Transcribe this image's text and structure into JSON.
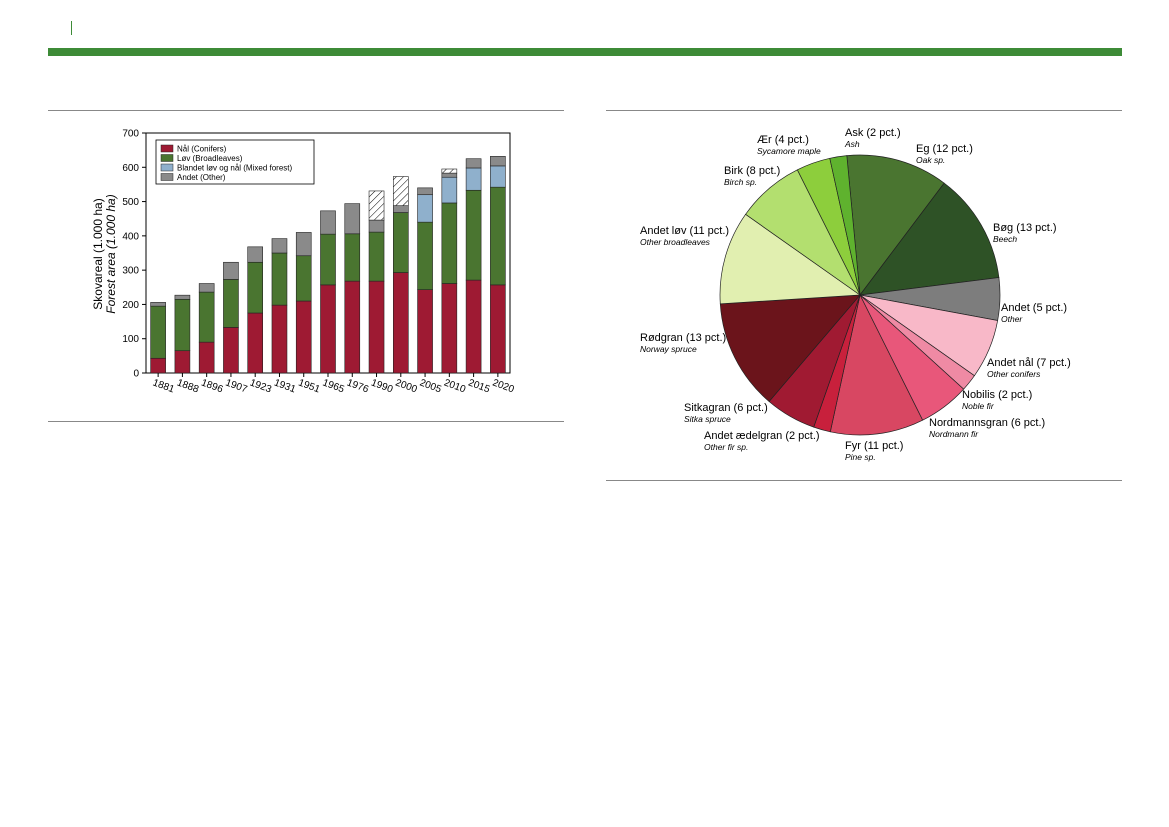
{
  "colors": {
    "accent": "#3d8b37",
    "conifers": "#9e1a33",
    "broadleaves": "#4a7530",
    "mixed": "#8fb0cc",
    "other": "#8a8a8a"
  },
  "chart_data": [
    {
      "type": "bar",
      "stacked": true,
      "ylabel": "Skovareal (1.000 ha)",
      "ylabel_en": "Forest area (1.000 ha)",
      "ylim": [
        0,
        700
      ],
      "yticks": [
        0,
        100,
        200,
        300,
        400,
        500,
        600,
        700
      ],
      "categories": [
        "1881",
        "1888",
        "1896",
        "1907",
        "1923",
        "1931",
        "1951",
        "1965",
        "1976",
        "1990",
        "2000",
        "2005",
        "2010",
        "2015",
        "2020"
      ],
      "legend_position": "top-left",
      "series": [
        {
          "name": "Nål (Conifers)",
          "color": "#9e1a33",
          "values": [
            43,
            65,
            90,
            133,
            175,
            198,
            210,
            257,
            268,
            268,
            293,
            243,
            261,
            271,
            257
          ]
        },
        {
          "name": "Løv (Broadleaves)",
          "color": "#4a7530",
          "values": [
            152,
            150,
            146,
            140,
            148,
            152,
            132,
            148,
            138,
            143,
            175,
            197,
            235,
            262,
            285
          ]
        },
        {
          "name": "Blandet løv og nål (Mixed forest)",
          "color": "#8fb0cc",
          "values": [
            0,
            0,
            0,
            0,
            0,
            0,
            0,
            0,
            0,
            0,
            0,
            80,
            75,
            65,
            62
          ]
        },
        {
          "name": "Andet (Other)",
          "color": "#8a8a8a",
          "values": [
            11,
            12,
            25,
            50,
            45,
            42,
            68,
            68,
            88,
            35,
            20,
            20,
            12,
            27,
            28
          ]
        }
      ],
      "hatched_extra": [
        0,
        0,
        0,
        0,
        0,
        0,
        0,
        0,
        0,
        85,
        85,
        0,
        12,
        0,
        0
      ]
    },
    {
      "type": "pie",
      "slices": [
        {
          "label": "Eg (12 pct.)",
          "sub": "Oak sp.",
          "value": 12,
          "color": "#4a7530"
        },
        {
          "label": "Bøg (13 pct.)",
          "sub": "Beech",
          "value": 13,
          "color": "#2e5226"
        },
        {
          "label": "Andet (5 pct.)",
          "sub": "Other",
          "value": 5,
          "color": "#7d7d7d"
        },
        {
          "label": "Andet nål (7 pct.)",
          "sub": "Other conifers",
          "value": 7,
          "color": "#f8b8c8"
        },
        {
          "label": "Nobilis (2 pct.)",
          "sub": "Noble fir",
          "value": 2,
          "color": "#ef8aa4"
        },
        {
          "label": "Nordmannsgran (6 pct.)",
          "sub": "Nordmann fir",
          "value": 6,
          "color": "#e8577a"
        },
        {
          "label": "Fyr (11 pct.)",
          "sub": "Pine sp.",
          "value": 11,
          "color": "#d84762"
        },
        {
          "label": "Andet ædelgran (2 pct.)",
          "sub": "Other fir sp.",
          "value": 2,
          "color": "#c8203c"
        },
        {
          "label": "Sitkagran (6 pct.)",
          "sub": "Sitka spruce",
          "value": 6,
          "color": "#a01a32"
        },
        {
          "label": "Rødgran (13 pct.)",
          "sub": "Norway spruce",
          "value": 13,
          "color": "#6b141b"
        },
        {
          "label": "Andet løv (11 pct.)",
          "sub": "Other broadleaves",
          "value": 11,
          "color": "#e1efb0"
        },
        {
          "label": "Birk (8 pct.)",
          "sub": "Birch sp.",
          "value": 8,
          "color": "#b3df6f"
        },
        {
          "label": "Ær (4 pct.)",
          "sub": "Sycamore maple",
          "value": 4,
          "color": "#8dce3c"
        },
        {
          "label": "Ask (2 pct.)",
          "sub": "Ash",
          "value": 2,
          "color": "#5fb22e"
        }
      ]
    }
  ]
}
